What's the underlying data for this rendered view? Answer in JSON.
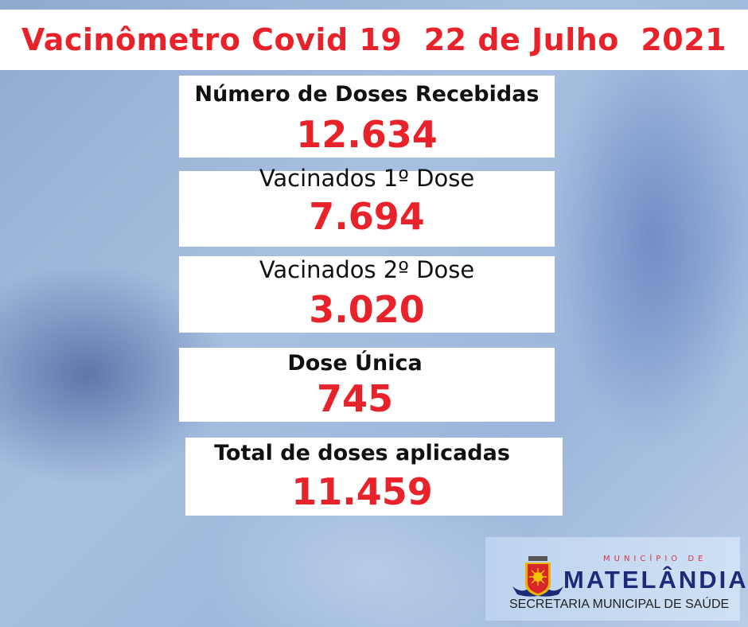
{
  "header": {
    "title": "Vacinômetro Covid 19  22 de Julho  2021"
  },
  "stats": [
    {
      "label": "Número de Doses Recebidas",
      "value": "12.634"
    },
    {
      "label": "Vacinados 1º Dose",
      "value": "7.694"
    },
    {
      "label": "Vacinados 2º Dose",
      "value": "3.020"
    },
    {
      "label": "Dose Única",
      "value": "745"
    },
    {
      "label": "Total de doses aplicadas",
      "value": "11.459"
    }
  ],
  "logo": {
    "top": "MUNICÍPIO DE",
    "name": "MATELÂNDIA",
    "subtitle": "SECRETARIA MUNICIPAL DE SAÚDE"
  },
  "colors": {
    "accent": "#e8222a",
    "brand": "#1c2a7a"
  }
}
